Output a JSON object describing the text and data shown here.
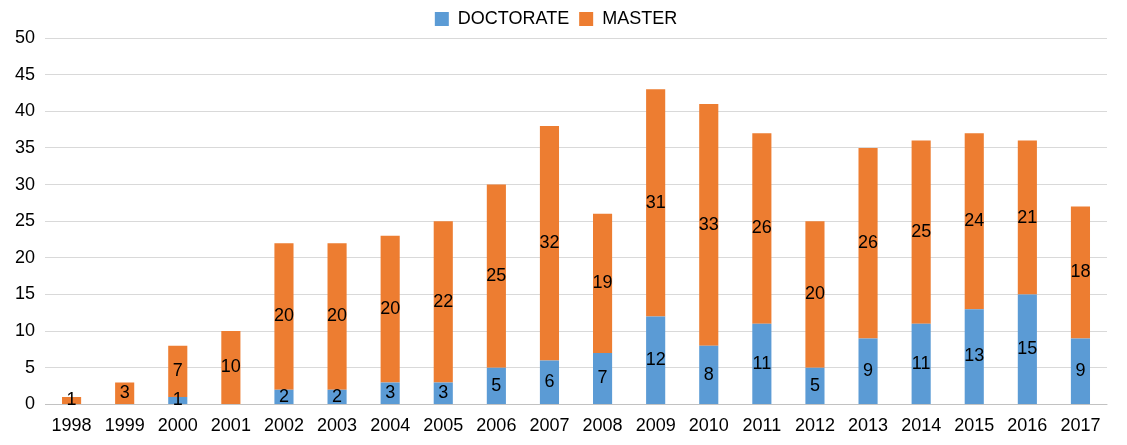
{
  "chart_data": {
    "type": "bar",
    "stacked": true,
    "categories": [
      "1998",
      "1999",
      "2000",
      "2001",
      "2002",
      "2003",
      "2004",
      "2005",
      "2006",
      "2007",
      "2008",
      "2009",
      "2010",
      "2011",
      "2012",
      "2013",
      "2014",
      "2015",
      "2016",
      "2017"
    ],
    "series": [
      {
        "name": "DOCTORATE",
        "color": "#5b9bd5",
        "values": [
          null,
          null,
          1,
          null,
          2,
          2,
          3,
          3,
          5,
          6,
          7,
          12,
          8,
          11,
          5,
          9,
          11,
          13,
          15,
          9
        ]
      },
      {
        "name": "MASTER",
        "color": "#ed7d31",
        "values": [
          1,
          3,
          7,
          10,
          20,
          20,
          20,
          22,
          25,
          32,
          19,
          31,
          33,
          26,
          20,
          26,
          25,
          24,
          21,
          18
        ]
      }
    ],
    "ylim": [
      0,
      50
    ],
    "yticks": [
      0,
      5,
      10,
      15,
      20,
      25,
      30,
      35,
      40,
      45,
      50
    ],
    "grid": "y",
    "legend": "top",
    "data_labels": true
  }
}
